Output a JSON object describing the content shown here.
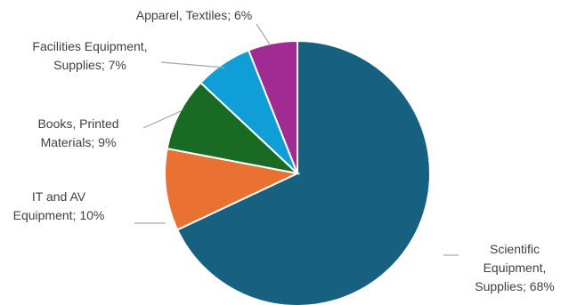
{
  "chart_data": {
    "type": "pie",
    "title": "",
    "legend": "none",
    "start_angle_deg": 0,
    "direction": "clockwise",
    "slices": [
      {
        "label": "Scientific Equipment, Supplies",
        "display": [
          "Scientific",
          "Equipment,",
          "Supplies; 68%"
        ],
        "value": 68,
        "color": "#17607f"
      },
      {
        "label": "IT and AV Equipment",
        "display": [
          "IT and AV",
          "Equipment; 10%"
        ],
        "value": 10,
        "color": "#e97132"
      },
      {
        "label": "Books, Printed Materials",
        "display": [
          "Books, Printed",
          "Materials; 9%"
        ],
        "value": 9,
        "color": "#196b24"
      },
      {
        "label": "Facilities Equipment, Supplies",
        "display": [
          "Facilities Equipment,",
          "Supplies; 7%"
        ],
        "value": 7,
        "color": "#0f9ed5"
      },
      {
        "label": "Apparel, Textiles",
        "display": [
          "Apparel, Textiles; 6%"
        ],
        "value": 6,
        "color": "#a02b93"
      }
    ]
  }
}
